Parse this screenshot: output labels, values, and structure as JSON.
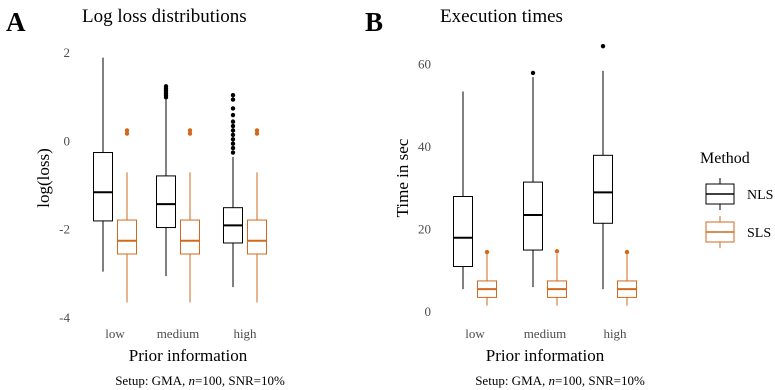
{
  "colors": {
    "NLS": "#000000",
    "SLS": "#d2691e"
  },
  "legend": {
    "title": "Method",
    "entries": [
      {
        "key": "NLS",
        "label": "NLS"
      },
      {
        "key": "SLS",
        "label": "SLS"
      }
    ]
  },
  "chart_data": [
    {
      "type": "boxplot",
      "panel_letter": "A",
      "title": "Log loss distributions",
      "xlabel": "Prior information",
      "ylabel": "log(loss)",
      "caption": {
        "prefix": "Setup: GMA, ",
        "italic": "n",
        "suffix": "=100, SNR=10%"
      },
      "categories": [
        "low",
        "medium",
        "high"
      ],
      "ylim": [
        -4,
        2.3
      ],
      "yticks": [
        -4,
        -2,
        0,
        2
      ],
      "ytick_labels": [
        "-4",
        "-2",
        "0",
        "2"
      ],
      "grid": false,
      "series": [
        {
          "key": "NLS",
          "boxes": [
            {
              "whisker_low": -2.95,
              "q1": -1.8,
              "median": -1.15,
              "q3": -0.25,
              "whisker_high": 1.9,
              "outliers": []
            },
            {
              "whisker_low": -3.05,
              "q1": -1.95,
              "median": -1.42,
              "q3": -0.78,
              "whisker_high": 0.95,
              "outliers": [
                1.0,
                1.05,
                1.1,
                1.15,
                1.2,
                1.25
              ]
            },
            {
              "whisker_low": -3.3,
              "q1": -2.3,
              "median": -1.9,
              "q3": -1.5,
              "whisker_high": -0.35,
              "outliers": [
                -0.25,
                -0.15,
                -0.05,
                0.05,
                0.15,
                0.25,
                0.35,
                0.45,
                0.6,
                0.75,
                0.95,
                1.05
              ]
            }
          ]
        },
        {
          "key": "SLS",
          "boxes": [
            {
              "whisker_low": -3.65,
              "q1": -2.55,
              "median": -2.25,
              "q3": -1.78,
              "whisker_high": -0.7,
              "outliers": [
                0.18,
                0.25
              ]
            },
            {
              "whisker_low": -3.65,
              "q1": -2.55,
              "median": -2.25,
              "q3": -1.78,
              "whisker_high": -0.7,
              "outliers": [
                0.18,
                0.25
              ]
            },
            {
              "whisker_low": -3.65,
              "q1": -2.55,
              "median": -2.25,
              "q3": -1.78,
              "whisker_high": -0.7,
              "outliers": [
                0.18,
                0.25
              ]
            }
          ]
        }
      ]
    },
    {
      "type": "boxplot",
      "panel_letter": "B",
      "title": "Execution times",
      "xlabel": "Prior information",
      "ylabel": "Time in sec",
      "caption": {
        "prefix": "Setup: GMA, ",
        "italic": "n",
        "suffix": "=100, SNR=10%"
      },
      "categories": [
        "low",
        "medium",
        "high"
      ],
      "ylim": [
        -1.5,
        66
      ],
      "yticks": [
        0,
        20,
        40,
        60
      ],
      "ytick_labels": [
        "0",
        "20",
        "40",
        "60"
      ],
      "grid": false,
      "series": [
        {
          "key": "NLS",
          "boxes": [
            {
              "whisker_low": 5.5,
              "q1": 11,
              "median": 18,
              "q3": 28,
              "whisker_high": 53.5,
              "outliers": []
            },
            {
              "whisker_low": 6,
              "q1": 15,
              "median": 23.5,
              "q3": 31.5,
              "whisker_high": 57,
              "outliers": [
                58
              ]
            },
            {
              "whisker_low": 5.5,
              "q1": 21.5,
              "median": 29,
              "q3": 38,
              "whisker_high": 58.5,
              "outliers": [
                64.5
              ]
            }
          ]
        },
        {
          "key": "SLS",
          "boxes": [
            {
              "whisker_low": 1.5,
              "q1": 3.5,
              "median": 5.5,
              "q3": 7.5,
              "whisker_high": 14,
              "outliers": [
                14.5
              ]
            },
            {
              "whisker_low": 1.5,
              "q1": 3.5,
              "median": 5.5,
              "q3": 7.5,
              "whisker_high": 14,
              "outliers": [
                14.7
              ]
            },
            {
              "whisker_low": 1.5,
              "q1": 3.5,
              "median": 5.5,
              "q3": 7.5,
              "whisker_high": 14,
              "outliers": [
                14.5
              ]
            }
          ]
        }
      ]
    }
  ]
}
